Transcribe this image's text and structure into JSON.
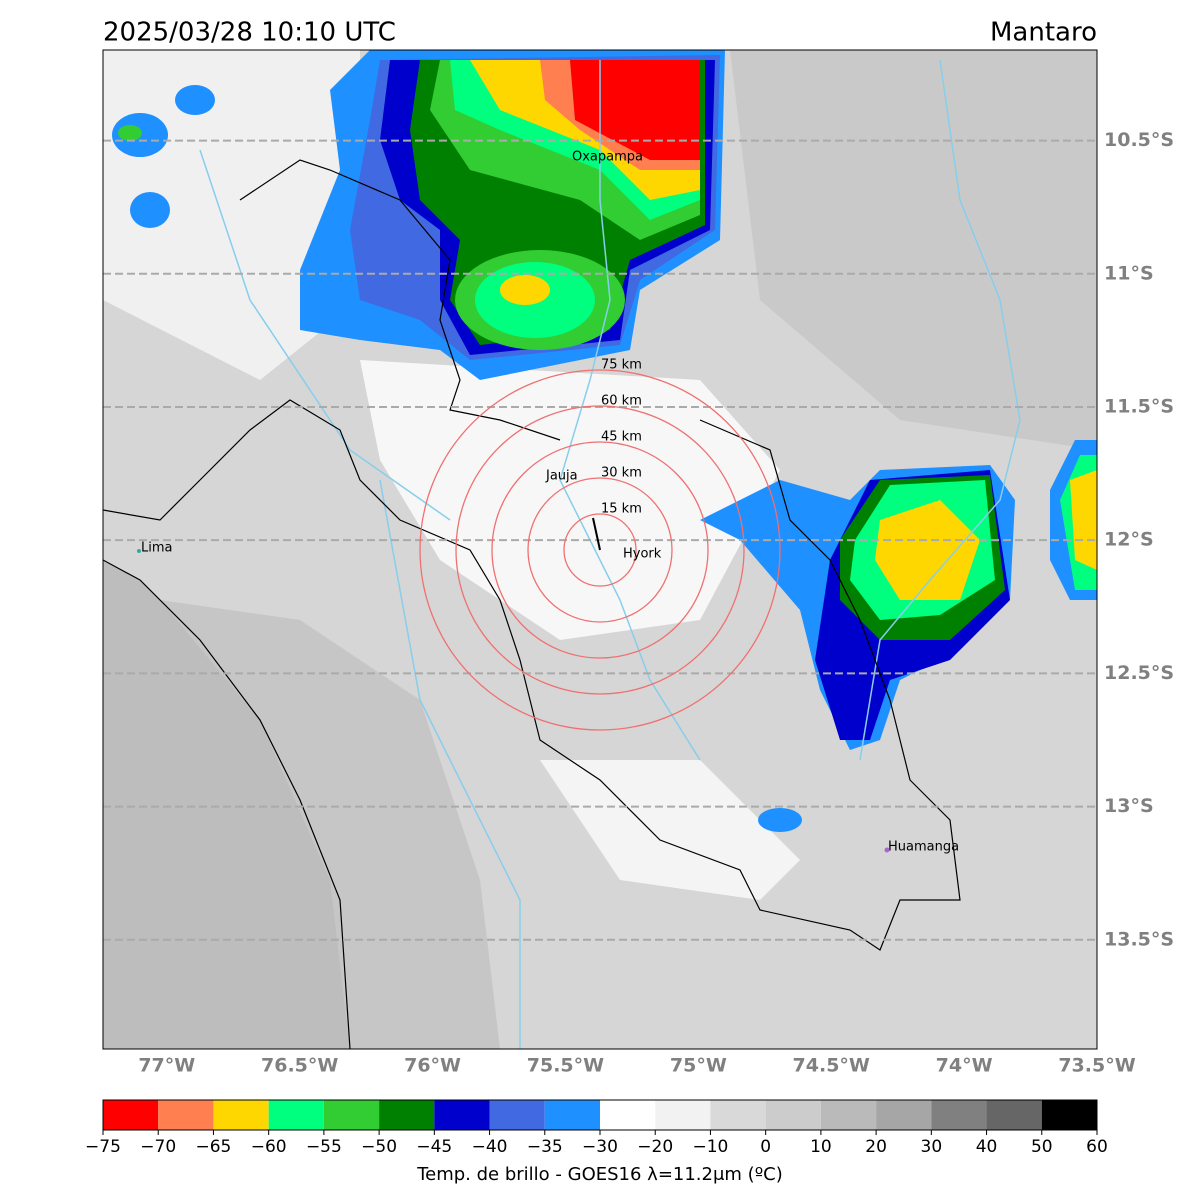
{
  "header": {
    "title": "2025/03/28 10:10 UTC",
    "region": "Mantaro"
  },
  "map": {
    "xlim": [
      -77.24,
      -73.5
    ],
    "ylim": [
      -13.91,
      -10.16
    ],
    "xticks": [
      {
        "value": -77,
        "label": "77°W"
      },
      {
        "value": -76.5,
        "label": "76.5°W"
      },
      {
        "value": -76,
        "label": "76°W"
      },
      {
        "value": -75.5,
        "label": "75.5°W"
      },
      {
        "value": -75,
        "label": "75°W"
      },
      {
        "value": -74.5,
        "label": "74.5°W"
      },
      {
        "value": -74,
        "label": "74°W"
      },
      {
        "value": -73.5,
        "label": "73.5°W"
      }
    ],
    "yticks": [
      {
        "value": -10.5,
        "label": "10.5°S"
      },
      {
        "value": -11,
        "label": "11°S"
      },
      {
        "value": -11.5,
        "label": "11.5°S"
      },
      {
        "value": -12,
        "label": "12°S"
      },
      {
        "value": -12.5,
        "label": "12.5°S"
      },
      {
        "value": -13,
        "label": "13°S"
      },
      {
        "value": -13.5,
        "label": "13.5°S"
      }
    ],
    "grid": true,
    "cities": [
      "Oxapampa",
      "Jauja",
      "Hyork",
      "Lima",
      "Huamanga"
    ],
    "rings": [
      "15 km",
      "30 km",
      "45 km",
      "60 km",
      "75 km"
    ]
  },
  "colorbar": {
    "label": "Temp. de brillo - GOES16 λ=11.2μm (ºC)",
    "bounds": [
      {
        "value": -75,
        "label": "−75"
      },
      {
        "value": -70,
        "label": "−70"
      },
      {
        "value": -65,
        "label": "−65"
      },
      {
        "value": -60,
        "label": "−60"
      },
      {
        "value": -55,
        "label": "−55"
      },
      {
        "value": -50,
        "label": "−50"
      },
      {
        "value": -45,
        "label": "−45"
      },
      {
        "value": -40,
        "label": "−40"
      },
      {
        "value": -35,
        "label": "−35"
      },
      {
        "value": -30,
        "label": "−30"
      },
      {
        "value": -20,
        "label": "−20"
      },
      {
        "value": -10,
        "label": "−10"
      },
      0,
      10,
      20,
      30,
      40,
      50,
      60
    ],
    "colors": [
      "#ff0000",
      "#ff7f50",
      "#ffd700",
      "#00ff7f",
      "#32cd32",
      "#008000",
      "#0000cd",
      "#4169e1",
      "#1e90ff",
      "#ffffff",
      "#f2f2f2",
      "#d9d9d9",
      "#cccccc",
      "#bababa",
      "#a6a6a6",
      "#808080",
      "#666666",
      "#000000"
    ]
  }
}
